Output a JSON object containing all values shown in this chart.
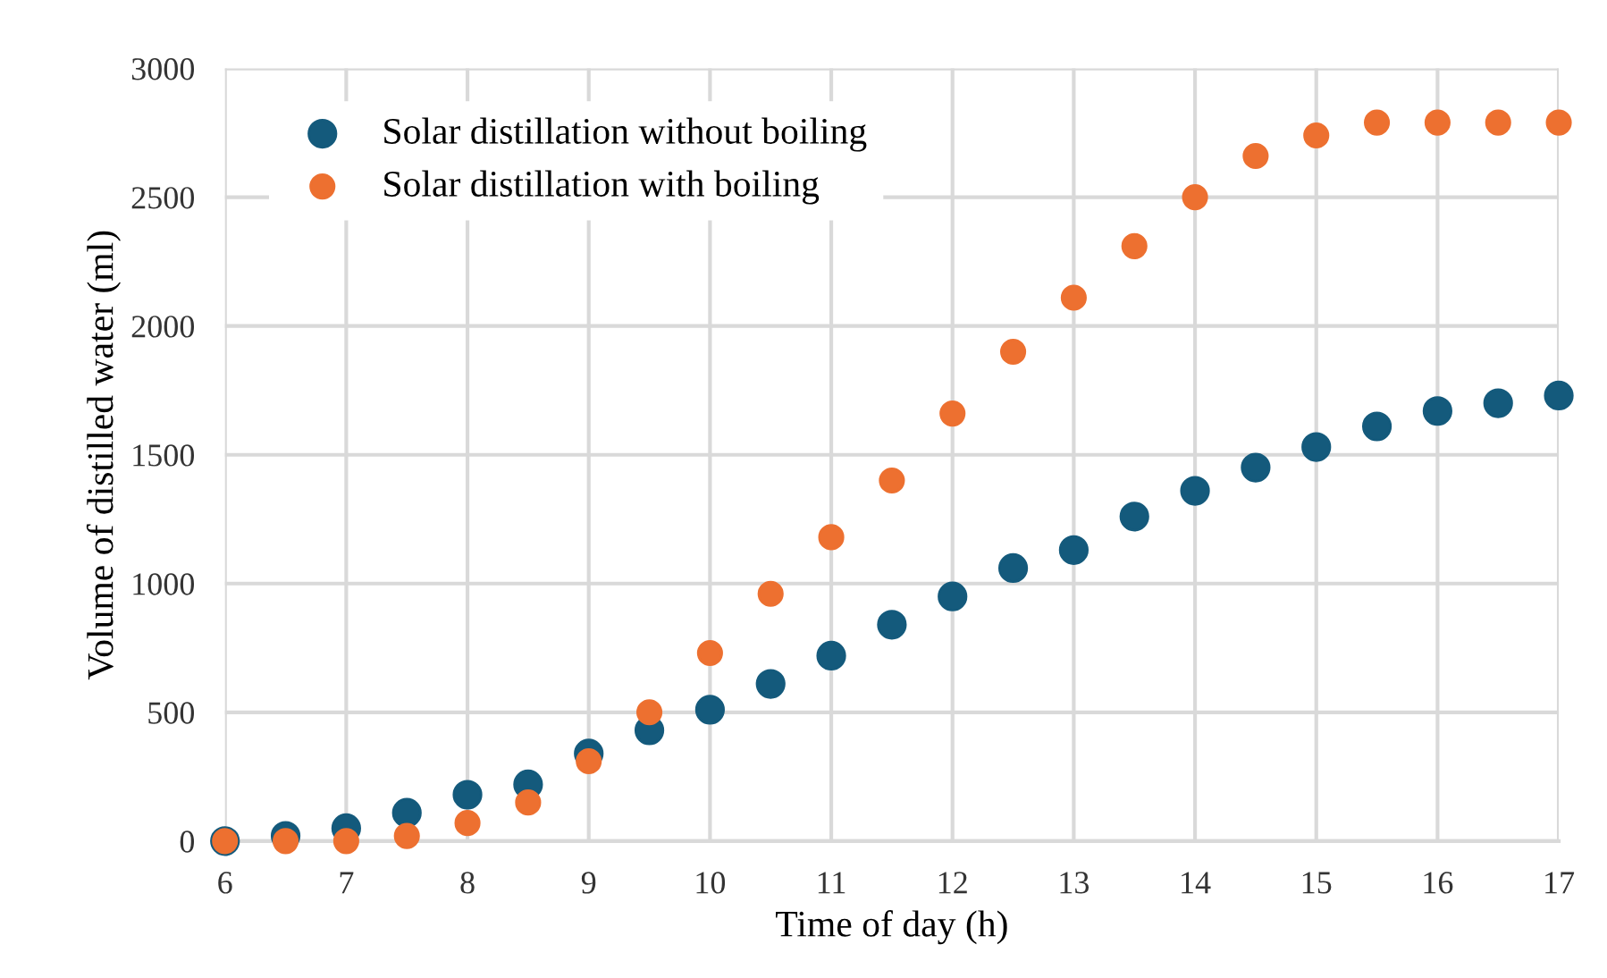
{
  "chart_data": {
    "type": "scatter",
    "xlabel": "Time of day (h)",
    "ylabel": "Volume of distilled water (ml)",
    "x": [
      6,
      6.5,
      7,
      7.5,
      8,
      8.5,
      9,
      9.5,
      10,
      10.5,
      11,
      11.5,
      12,
      12.5,
      13,
      13.5,
      14,
      14.5,
      15,
      15.5,
      16,
      16.5,
      17
    ],
    "series": [
      {
        "name": "Solar distillation without boiling",
        "color": "#145a7c",
        "values": [
          0,
          20,
          50,
          110,
          180,
          220,
          340,
          430,
          510,
          610,
          720,
          840,
          950,
          1060,
          1130,
          1260,
          1360,
          1450,
          1530,
          1610,
          1670,
          1700,
          1730
        ]
      },
      {
        "name": "Solar distillation with boiling",
        "color": "#ed7030",
        "values": [
          0,
          0,
          0,
          20,
          70,
          150,
          310,
          500,
          730,
          960,
          1180,
          1400,
          1660,
          1900,
          2110,
          2310,
          2500,
          2660,
          2740,
          2790,
          2790,
          2790,
          2790
        ]
      }
    ],
    "xlim": [
      6,
      17
    ],
    "xticks": [
      6,
      7,
      8,
      9,
      10,
      11,
      12,
      13,
      14,
      15,
      16,
      17
    ],
    "ylim": [
      0,
      3000
    ],
    "yticks": [
      0,
      500,
      1000,
      1500,
      2000,
      2500,
      3000
    ],
    "grid": true,
    "legend": "top left",
    "marker": "circle"
  }
}
